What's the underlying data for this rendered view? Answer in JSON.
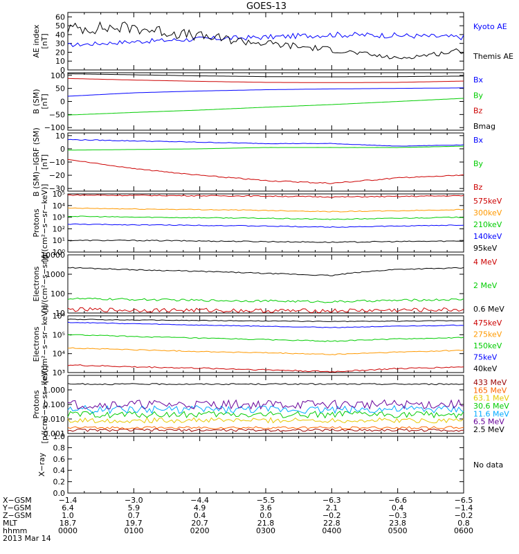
{
  "title": "GOES-13",
  "panels": [
    {
      "id": "ae",
      "ylabel": [
        "AE index",
        "[nT]"
      ],
      "scale": "linear",
      "ylim": [
        0,
        65
      ],
      "ticks": [
        "0",
        "10",
        "20",
        "30",
        "40",
        "50",
        "60"
      ],
      "tick_values": [
        0,
        10,
        20,
        30,
        40,
        50,
        60
      ],
      "no_data": "",
      "legend": [
        {
          "label": "Kyoto AE",
          "color": "#0000ff"
        },
        {
          "label": "Themis AE",
          "color": "#000000"
        }
      ]
    },
    {
      "id": "bsm",
      "ylabel": [
        "B (SM)",
        "[nT]"
      ],
      "scale": "linear",
      "ylim": [
        -110,
        110
      ],
      "ticks": [
        "−100",
        "−50",
        "0",
        "50",
        "100"
      ],
      "tick_values": [
        -100,
        -50,
        0,
        50,
        100
      ],
      "no_data": "",
      "legend": [
        {
          "label": "Bx",
          "color": "#0000ff"
        },
        {
          "label": "By",
          "color": "#00cc00"
        },
        {
          "label": "Bz",
          "color": "#cc0000"
        },
        {
          "label": "Bmag",
          "color": "#000000"
        }
      ]
    },
    {
      "id": "bigrf",
      "ylabel": [
        "B (SM)−IGRF (SM)",
        "[nT]"
      ],
      "scale": "linear",
      "ylim": [
        -32,
        12
      ],
      "ticks": [
        "−30",
        "−20",
        "−10",
        "0",
        "10"
      ],
      "tick_values": [
        -30,
        -20,
        -10,
        0,
        10
      ],
      "no_data": "",
      "legend": [
        {
          "label": "Bx",
          "color": "#0000ff"
        },
        {
          "label": "By",
          "color": "#00cc00"
        },
        {
          "label": "Bz",
          "color": "#cc0000"
        }
      ]
    },
    {
      "id": "protons_low",
      "ylabel": [
        "Protons",
        "[p/(cm²−s−sr−keV)]"
      ],
      "scale": "log",
      "ylim": [
        1,
        100000
      ],
      "ticks": [
        "10⁰",
        "10¹",
        "10²",
        "10³",
        "10⁴",
        "10⁵"
      ],
      "tick_values": [
        1,
        10,
        100,
        1000,
        10000,
        100000
      ],
      "no_data": "",
      "legend": [
        {
          "label": "575keV",
          "color": "#cc0000"
        },
        {
          "label": "300keV",
          "color": "#ff9900"
        },
        {
          "label": "210keV",
          "color": "#00cc00"
        },
        {
          "label": "140keV",
          "color": "#0000ff"
        },
        {
          "label": "95keV",
          "color": "#000000"
        }
      ]
    },
    {
      "id": "electrons_high",
      "ylabel": [
        "Electrons",
        "[e/(cm²−s−sr)]"
      ],
      "scale": "log",
      "ylim": [
        10,
        10000
      ],
      "ticks": [
        "10",
        "100",
        "1000",
        "10000"
      ],
      "tick_values": [
        10,
        100,
        1000,
        10000
      ],
      "no_data": "",
      "legend": [
        {
          "label": "4 MeV",
          "color": "#cc0000"
        },
        {
          "label": "2 MeV",
          "color": "#00cc00"
        },
        {
          "label": "0.6 MeV",
          "color": "#000000"
        }
      ]
    },
    {
      "id": "electrons_low",
      "ylabel": [
        "Electrons",
        "[e/(cm²−s−sr−keV)]"
      ],
      "scale": "log",
      "ylim": [
        1000,
        1000000
      ],
      "ticks": [
        "10³",
        "10⁴",
        "10⁵",
        "10⁶"
      ],
      "tick_values": [
        1000,
        10000,
        100000,
        1000000
      ],
      "no_data": "",
      "legend": [
        {
          "label": "475keV",
          "color": "#cc0000"
        },
        {
          "label": "275keV",
          "color": "#ff9900"
        },
        {
          "label": "150keV",
          "color": "#00cc00"
        },
        {
          "label": "75keV",
          "color": "#0000ff"
        },
        {
          "label": "40keV",
          "color": "#000000"
        }
      ]
    },
    {
      "id": "protons_high",
      "ylabel": [
        "Protons",
        "[p/(cm²−s−sr−keV)]"
      ],
      "scale": "log",
      "ylim": [
        0.001,
        10
      ],
      "ticks": [
        "0.001",
        "0.010",
        "0.100",
        "1.000"
      ],
      "tick_values": [
        0.001,
        0.01,
        0.1,
        1
      ],
      "no_data": "",
      "legend": [
        {
          "label": "433 MeV",
          "color": "#990000"
        },
        {
          "label": "165 MeV",
          "color": "#ff6600"
        },
        {
          "label": "63.1 MeV",
          "color": "#e6c800"
        },
        {
          "label": "30.6 MeV",
          "color": "#00cc00"
        },
        {
          "label": "11.6 MeV",
          "color": "#00aaff"
        },
        {
          "label": "6.5 MeV",
          "color": "#660099"
        },
        {
          "label": "2.5 MeV",
          "color": "#000000"
        }
      ]
    },
    {
      "id": "xray",
      "ylabel": [
        "X−ray"
      ],
      "scale": "linear",
      "ylim": [
        0,
        1
      ],
      "ticks": [
        "0.0",
        "0.2",
        "0.4",
        "0.6",
        "0.8",
        "1.0"
      ],
      "tick_values": [
        0,
        0.2,
        0.4,
        0.6,
        0.8,
        1.0
      ],
      "no_data": "No data",
      "legend": []
    }
  ],
  "footer": {
    "rows": [
      {
        "label": "X−GSM",
        "values": [
          "−1.4",
          "−3.0",
          "−4.4",
          "−5.5",
          "−6.3",
          "−6.6",
          "−6.5"
        ]
      },
      {
        "label": "Y−GSM",
        "values": [
          "6.4",
          "5.9",
          "4.9",
          "3.6",
          "2.1",
          "0.4",
          "−1.4"
        ]
      },
      {
        "label": "Z−GSM",
        "values": [
          "1.0",
          "0.7",
          "0.4",
          "0.0",
          "−0.2",
          "−0.3",
          "−0.2"
        ]
      },
      {
        "label": "MLT",
        "values": [
          "18.7",
          "19.7",
          "20.7",
          "21.8",
          "22.8",
          "23.8",
          "0.8"
        ]
      },
      {
        "label": "hhmm",
        "values": [
          "0000",
          "0100",
          "0200",
          "0300",
          "0400",
          "0500",
          "0600"
        ]
      }
    ],
    "date": "2013 Mar 14"
  },
  "chart_data": {
    "type": "line",
    "title": "GOES-13",
    "x_range_hhmm": [
      "0000",
      "0600"
    ],
    "x": [
      0,
      1,
      2,
      3,
      4,
      5,
      6
    ],
    "x_unit": "hours after 0000 UT",
    "panels": [
      {
        "id": "ae",
        "series": [
          {
            "name": "Kyoto AE",
            "values": [
              28,
              32,
              35,
              37,
              40,
              39,
              37
            ],
            "noise": 0.08
          },
          {
            "name": "Themis AE",
            "values": [
              47,
              48,
              38,
              30,
              23,
              13,
              22
            ],
            "noise": 0.15
          }
        ]
      },
      {
        "id": "bsm",
        "series": [
          {
            "name": "Bx",
            "values": [
              20,
              33,
              40,
              45,
              48,
              50,
              52
            ],
            "noise": 0.0
          },
          {
            "name": "By",
            "values": [
              -52,
              -42,
              -33,
              -22,
              -12,
              0,
              12
            ],
            "noise": 0.0
          },
          {
            "name": "Bz",
            "values": [
              88,
              82,
              77,
              73,
              72,
              73,
              78
            ],
            "noise": 0.0
          },
          {
            "name": "Bmag",
            "values": [
              106,
              102,
              98,
              95,
              94,
              95,
              97
            ],
            "noise": 0.0
          }
        ]
      },
      {
        "id": "bigrf",
        "series": [
          {
            "name": "Bx",
            "values": [
              7,
              6,
              5,
              4,
              4,
              2,
              3
            ],
            "noise": 0.05
          },
          {
            "name": "By",
            "values": [
              -1,
              -0.5,
              0,
              1,
              1,
              1,
              2
            ],
            "noise": 0.03
          },
          {
            "name": "Bz",
            "values": [
              -8,
              -15,
              -20,
              -24,
              -26,
              -22,
              -20
            ],
            "noise": 0.02
          }
        ]
      },
      {
        "id": "protons_low",
        "series": [
          {
            "name": "575keV",
            "values": [
              80000,
              75000,
              70000,
              65000,
              55000,
              60000,
              70000
            ],
            "noise": 0.05
          },
          {
            "name": "300keV",
            "values": [
              6000,
              5000,
              4500,
              3800,
              3000,
              3500,
              4500
            ],
            "noise": 0.04
          },
          {
            "name": "210keV",
            "values": [
              1200,
              1000,
              900,
              800,
              650,
              800,
              1000
            ],
            "noise": 0.04
          },
          {
            "name": "140keV",
            "values": [
              250,
              220,
              200,
              170,
              140,
              170,
              210
            ],
            "noise": 0.04
          },
          {
            "name": "95keV",
            "values": [
              10,
              10,
              9,
              8,
              7,
              8,
              9
            ],
            "noise": 0.05
          }
        ]
      },
      {
        "id": "electrons_high",
        "series": [
          {
            "name": "4 MeV",
            "values": [
              15,
              14,
              14,
              13,
              13,
              14,
              15
            ],
            "noise": 0.12
          },
          {
            "name": "2 MeV",
            "values": [
              55,
              50,
              45,
              42,
              38,
              45,
              50
            ],
            "noise": 0.06
          },
          {
            "name": "0.6 MeV",
            "values": [
              2200,
              1700,
              1400,
              1100,
              850,
              1800,
              2100
            ],
            "noise": 0.03
          }
        ]
      },
      {
        "id": "electrons_low",
        "series": [
          {
            "name": "475keV",
            "values": [
              2500,
              2000,
              1700,
              1400,
              1100,
              1600,
              2000
            ],
            "noise": 0.04
          },
          {
            "name": "275keV",
            "values": [
              20000,
              16000,
              13000,
              11000,
              9000,
              12000,
              15000
            ],
            "noise": 0.03
          },
          {
            "name": "150keV",
            "values": [
              100000,
              80000,
              65000,
              55000,
              45000,
              60000,
              70000
            ],
            "noise": 0.03
          },
          {
            "name": "75keV",
            "values": [
              450000,
              380000,
              320000,
              280000,
              240000,
              280000,
              320000
            ],
            "noise": 0.02
          },
          {
            "name": "40keV",
            "values": [
              650000,
              600000,
              560000,
              530000,
              500000,
              520000,
              560000
            ],
            "noise": 0.02
          }
        ]
      },
      {
        "id": "protons_high",
        "series": [
          {
            "name": "433 MeV",
            "values": [
              0.0017,
              0.0017,
              0.0017,
              0.0017,
              0.0017,
              0.0017,
              0.0017
            ],
            "noise": 0.1
          },
          {
            "name": "165 MeV",
            "values": [
              0.0025,
              0.0025,
              0.0025,
              0.0025,
              0.0025,
              0.0025,
              0.0025
            ],
            "noise": 0.1
          },
          {
            "name": "63.1 MeV",
            "values": [
              0.008,
              0.008,
              0.008,
              0.008,
              0.008,
              0.008,
              0.008
            ],
            "noise": 0.2
          },
          {
            "name": "30.6 MeV",
            "values": [
              0.02,
              0.02,
              0.02,
              0.02,
              0.02,
              0.02,
              0.02
            ],
            "noise": 0.25
          },
          {
            "name": "11.6 MeV",
            "values": [
              0.045,
              0.045,
              0.045,
              0.045,
              0.045,
              0.045,
              0.045
            ],
            "noise": 0.3
          },
          {
            "name": "6.5 MeV",
            "values": [
              0.1,
              0.1,
              0.1,
              0.1,
              0.1,
              0.1,
              0.1
            ],
            "noise": 0.35
          },
          {
            "name": "2.5 MeV",
            "values": [
              2.5,
              2.5,
              2.5,
              2.5,
              2.5,
              2.5,
              2.5
            ],
            "noise": 0.05
          }
        ]
      },
      {
        "id": "xray",
        "series": []
      }
    ]
  }
}
